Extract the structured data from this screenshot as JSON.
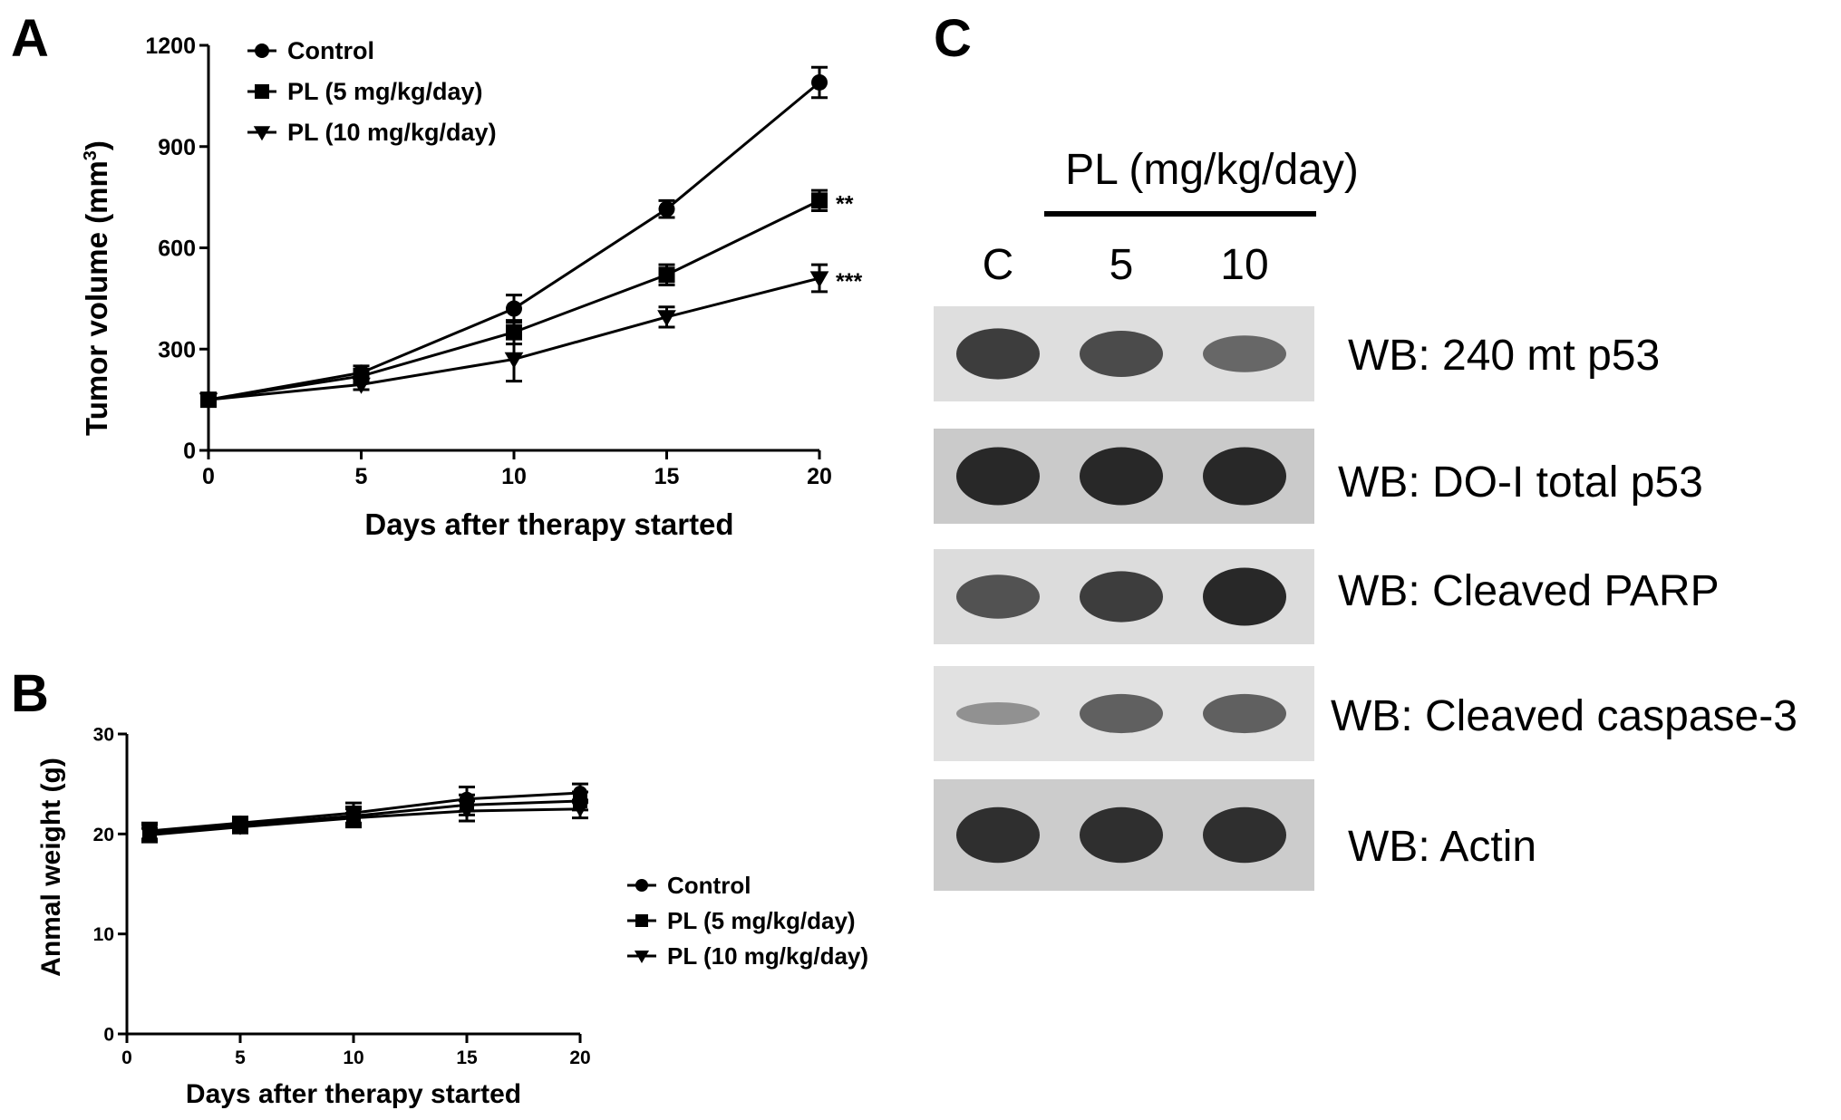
{
  "panels": {
    "a": "A",
    "b": "B",
    "c": "C"
  },
  "chart_data": [
    {
      "panel": "A",
      "type": "line",
      "xlabel": "Days after therapy started",
      "ylabel": "Tumor volume (mm",
      "ylabel_sup": "3",
      "ylabel_close": ")",
      "xlim": [
        0,
        20
      ],
      "ylim": [
        0,
        1200
      ],
      "xticks": [
        0,
        5,
        10,
        15,
        20
      ],
      "yticks": [
        0,
        300,
        600,
        900,
        1200
      ],
      "legend_position": "top-left",
      "grid": false,
      "series": [
        {
          "name": "Control",
          "marker": "circle",
          "x": [
            0,
            5,
            10,
            15,
            20
          ],
          "y": [
            150,
            230,
            420,
            715,
            1090
          ],
          "err": [
            15,
            20,
            40,
            25,
            45
          ],
          "annotation": ""
        },
        {
          "name": "PL  (5 mg/kg/day)",
          "marker": "square",
          "x": [
            0,
            5,
            10,
            15,
            20
          ],
          "y": [
            150,
            220,
            350,
            520,
            740
          ],
          "err": [
            15,
            20,
            35,
            30,
            30
          ],
          "annotation": "**"
        },
        {
          "name": "PL (10 mg/kg/day)",
          "marker": "triangle-down",
          "x": [
            0,
            5,
            10,
            15,
            20
          ],
          "y": [
            150,
            195,
            270,
            395,
            510
          ],
          "err": [
            15,
            15,
            65,
            30,
            40
          ],
          "annotation": "***"
        }
      ]
    },
    {
      "panel": "B",
      "type": "line",
      "xlabel": "Days after therapy started",
      "ylabel": "Anmal weight (g)",
      "xlim": [
        0,
        20
      ],
      "ylim": [
        0,
        30
      ],
      "xticks": [
        0,
        5,
        10,
        15,
        20
      ],
      "yticks": [
        0,
        10,
        20,
        30
      ],
      "legend_position": "right",
      "grid": false,
      "series": [
        {
          "name": "Control",
          "marker": "circle",
          "x": [
            1,
            5,
            10,
            15,
            20
          ],
          "y": [
            20.3,
            21.1,
            22.1,
            23.5,
            24.1
          ],
          "err": [
            0.8,
            0.6,
            1.0,
            1.2,
            0.9
          ]
        },
        {
          "name": "PL (5 mg/kg/day)",
          "marker": "square",
          "x": [
            1,
            5,
            10,
            15,
            20
          ],
          "y": [
            20.1,
            20.9,
            21.8,
            22.9,
            23.3
          ],
          "err": [
            0.8,
            0.6,
            0.9,
            1.0,
            0.9
          ]
        },
        {
          "name": "PL (10 mg/kg/day)",
          "marker": "triangle-down",
          "x": [
            1,
            5,
            10,
            15,
            20
          ],
          "y": [
            19.9,
            20.7,
            21.6,
            22.3,
            22.5
          ],
          "err": [
            0.7,
            0.6,
            0.9,
            1.0,
            0.9
          ]
        }
      ]
    }
  ],
  "western_blot": {
    "header": "PL (mg/kg/day)",
    "lanes": [
      "C",
      "5",
      "10"
    ],
    "blots": [
      {
        "label": "WB: 240 mt p53",
        "intensity": [
          0.85,
          0.75,
          0.55
        ]
      },
      {
        "label": "WB: DO-I total p53",
        "intensity": [
          1.0,
          1.0,
          1.0
        ]
      },
      {
        "label": "WB: Cleaved PARP",
        "intensity": [
          0.7,
          0.85,
          1.0
        ]
      },
      {
        "label": "WB: Cleaved caspase-3",
        "intensity": [
          0.25,
          0.6,
          0.6
        ]
      },
      {
        "label": "WB: Actin",
        "intensity": [
          0.95,
          0.95,
          0.95
        ]
      }
    ]
  }
}
